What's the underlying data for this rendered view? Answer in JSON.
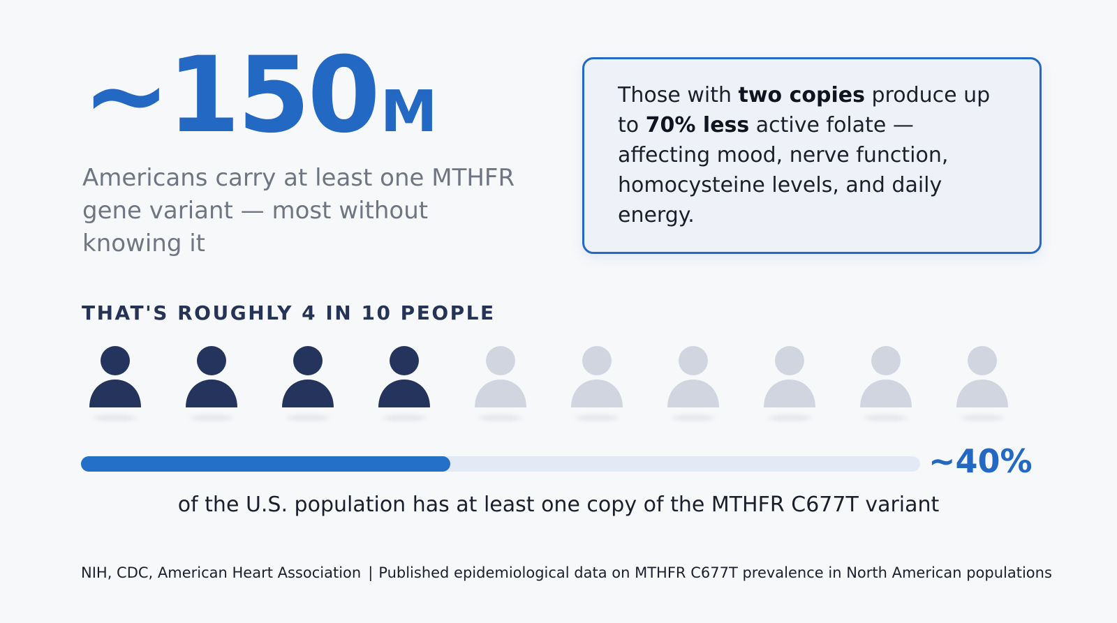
{
  "hero": {
    "prefix": "~",
    "number": "150",
    "unit": "M",
    "description": "Americans carry at least one MTHFR gene variant — most without knowing it"
  },
  "callout": {
    "part1": "Those with ",
    "bold1": "two copies",
    "part2": " produce up to ",
    "bold2": "70% less",
    "part3": " active folate — affecting mood, nerve function, homocysteine levels, and daily energy."
  },
  "section_label": "THAT'S ROUGHLY 4 IN 10 PEOPLE",
  "people": {
    "total": 10,
    "highlighted": 4,
    "highlight_color": "#24345c",
    "muted_color": "#d0d5e0"
  },
  "progress": {
    "fraction": 0.44,
    "value_label": "~40%",
    "caption": "of the U.S. population has at least one copy of the MTHFR C677T variant",
    "fill_color": "#2470c8",
    "track_color": "#e4eaf5"
  },
  "sources": {
    "left": "NIH, CDC, American Heart Association",
    "separator": "|",
    "right": "Published epidemiological data on MTHFR C677T prevalence in North American populations"
  },
  "colors": {
    "accent": "#2368c2",
    "text_dark": "#1a1f2b",
    "text_muted": "#6f7682",
    "label_navy": "#243356"
  }
}
